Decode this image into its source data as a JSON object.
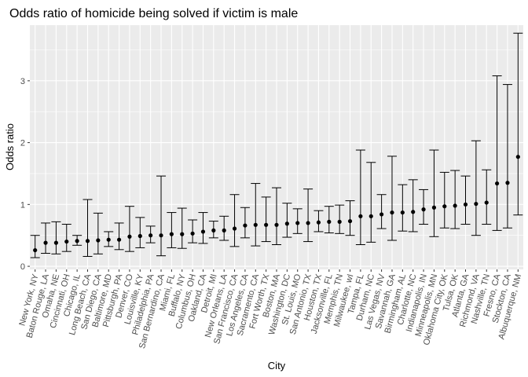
{
  "chart_data": {
    "type": "scatter",
    "title": "Odds ratio of homicide being solved if victim is male",
    "xlabel": "City",
    "ylabel": "Odds ratio",
    "ylim": [
      -0.05,
      3.9
    ],
    "yticks": [
      0,
      1,
      2,
      3
    ],
    "grid": true,
    "error_bars": true,
    "panel_background": "#ebebeb",
    "gridline_color": "#ffffff",
    "point_color": "#000000",
    "points": [
      {
        "city": "New York, NY",
        "or": 0.26,
        "lo": 0.14,
        "hi": 0.5
      },
      {
        "city": "Baton Rouge, LA",
        "or": 0.38,
        "lo": 0.21,
        "hi": 0.7
      },
      {
        "city": "Omaha, NE",
        "or": 0.38,
        "lo": 0.2,
        "hi": 0.72
      },
      {
        "city": "Cincinnati, OH",
        "or": 0.4,
        "lo": 0.24,
        "hi": 0.68
      },
      {
        "city": "Chicago, IL",
        "or": 0.41,
        "lo": 0.34,
        "hi": 0.5
      },
      {
        "city": "Long Beach, CA",
        "or": 0.41,
        "lo": 0.16,
        "hi": 1.08
      },
      {
        "city": "San Diego, CA",
        "or": 0.42,
        "lo": 0.2,
        "hi": 0.86
      },
      {
        "city": "Baltimore, MD",
        "or": 0.43,
        "lo": 0.32,
        "hi": 0.56
      },
      {
        "city": "Pittsburgh, PA",
        "or": 0.43,
        "lo": 0.27,
        "hi": 0.7
      },
      {
        "city": "Denver, CO",
        "or": 0.48,
        "lo": 0.24,
        "hi": 0.97
      },
      {
        "city": "Louisville, KY",
        "or": 0.49,
        "lo": 0.3,
        "hi": 0.79
      },
      {
        "city": "Philadelphia, PA",
        "or": 0.5,
        "lo": 0.38,
        "hi": 0.65
      },
      {
        "city": "San Bernardino, CA",
        "or": 0.5,
        "lo": 0.17,
        "hi": 1.46
      },
      {
        "city": "Miami, FL",
        "or": 0.52,
        "lo": 0.3,
        "hi": 0.87
      },
      {
        "city": "Buffalo, NY",
        "or": 0.52,
        "lo": 0.29,
        "hi": 0.94
      },
      {
        "city": "Columbus, OH",
        "or": 0.53,
        "lo": 0.38,
        "hi": 0.75
      },
      {
        "city": "Oakland, CA",
        "or": 0.56,
        "lo": 0.37,
        "hi": 0.87
      },
      {
        "city": "Detroit, MI",
        "or": 0.58,
        "lo": 0.46,
        "hi": 0.73
      },
      {
        "city": "New Orleans, LA",
        "or": 0.58,
        "lo": 0.42,
        "hi": 0.81
      },
      {
        "city": "San Francisco, CA",
        "or": 0.61,
        "lo": 0.32,
        "hi": 1.16
      },
      {
        "city": "Los Angeles, CA",
        "or": 0.66,
        "lo": 0.46,
        "hi": 0.95
      },
      {
        "city": "Sacramento, CA",
        "or": 0.67,
        "lo": 0.33,
        "hi": 1.34
      },
      {
        "city": "Fort Worth, TX",
        "or": 0.67,
        "lo": 0.4,
        "hi": 1.12
      },
      {
        "city": "Boston, MA",
        "or": 0.67,
        "lo": 0.35,
        "hi": 1.27
      },
      {
        "city": "Washington, DC",
        "or": 0.69,
        "lo": 0.47,
        "hi": 1.02
      },
      {
        "city": "St. Louis, MO",
        "or": 0.7,
        "lo": 0.53,
        "hi": 0.93
      },
      {
        "city": "San Antonio, TX",
        "or": 0.7,
        "lo": 0.4,
        "hi": 1.25
      },
      {
        "city": "Houston, TX",
        "or": 0.71,
        "lo": 0.56,
        "hi": 0.9
      },
      {
        "city": "Jacksonville, FL",
        "or": 0.72,
        "lo": 0.54,
        "hi": 0.97
      },
      {
        "city": "Memphis, TN",
        "or": 0.72,
        "lo": 0.53,
        "hi": 0.99
      },
      {
        "city": "Milwaukee, wI",
        "or": 0.73,
        "lo": 0.5,
        "hi": 1.06
      },
      {
        "city": "Tampa, FL",
        "or": 0.81,
        "lo": 0.35,
        "hi": 1.88
      },
      {
        "city": "Durham, NC",
        "or": 0.81,
        "lo": 0.39,
        "hi": 1.68
      },
      {
        "city": "Las Vegas, NV",
        "or": 0.84,
        "lo": 0.61,
        "hi": 1.16
      },
      {
        "city": "Savannah, GA",
        "or": 0.87,
        "lo": 0.42,
        "hi": 1.78
      },
      {
        "city": "Birmingham, AL",
        "or": 0.87,
        "lo": 0.57,
        "hi": 1.32
      },
      {
        "city": "Charlotte, NC",
        "or": 0.88,
        "lo": 0.56,
        "hi": 1.4
      },
      {
        "city": "Indianapolis, IN",
        "or": 0.92,
        "lo": 0.68,
        "hi": 1.24
      },
      {
        "city": "Minneapolis, MN",
        "or": 0.95,
        "lo": 0.48,
        "hi": 1.88
      },
      {
        "city": "Oklahoma City, OK",
        "or": 0.97,
        "lo": 0.62,
        "hi": 1.52
      },
      {
        "city": "Tulsa, OK",
        "or": 0.98,
        "lo": 0.61,
        "hi": 1.55
      },
      {
        "city": "Atlanta, GA",
        "or": 1.0,
        "lo": 0.68,
        "hi": 1.46
      },
      {
        "city": "Richmond, VA",
        "or": 1.01,
        "lo": 0.5,
        "hi": 2.03
      },
      {
        "city": "Nashville, TN",
        "or": 1.03,
        "lo": 0.68,
        "hi": 1.56
      },
      {
        "city": "Fresno, CA",
        "or": 1.34,
        "lo": 0.58,
        "hi": 3.08
      },
      {
        "city": "Stockton, CA",
        "or": 1.35,
        "lo": 0.62,
        "hi": 2.94
      },
      {
        "city": "Albuquerque, NM",
        "or": 1.77,
        "lo": 0.83,
        "hi": 3.77
      }
    ]
  }
}
